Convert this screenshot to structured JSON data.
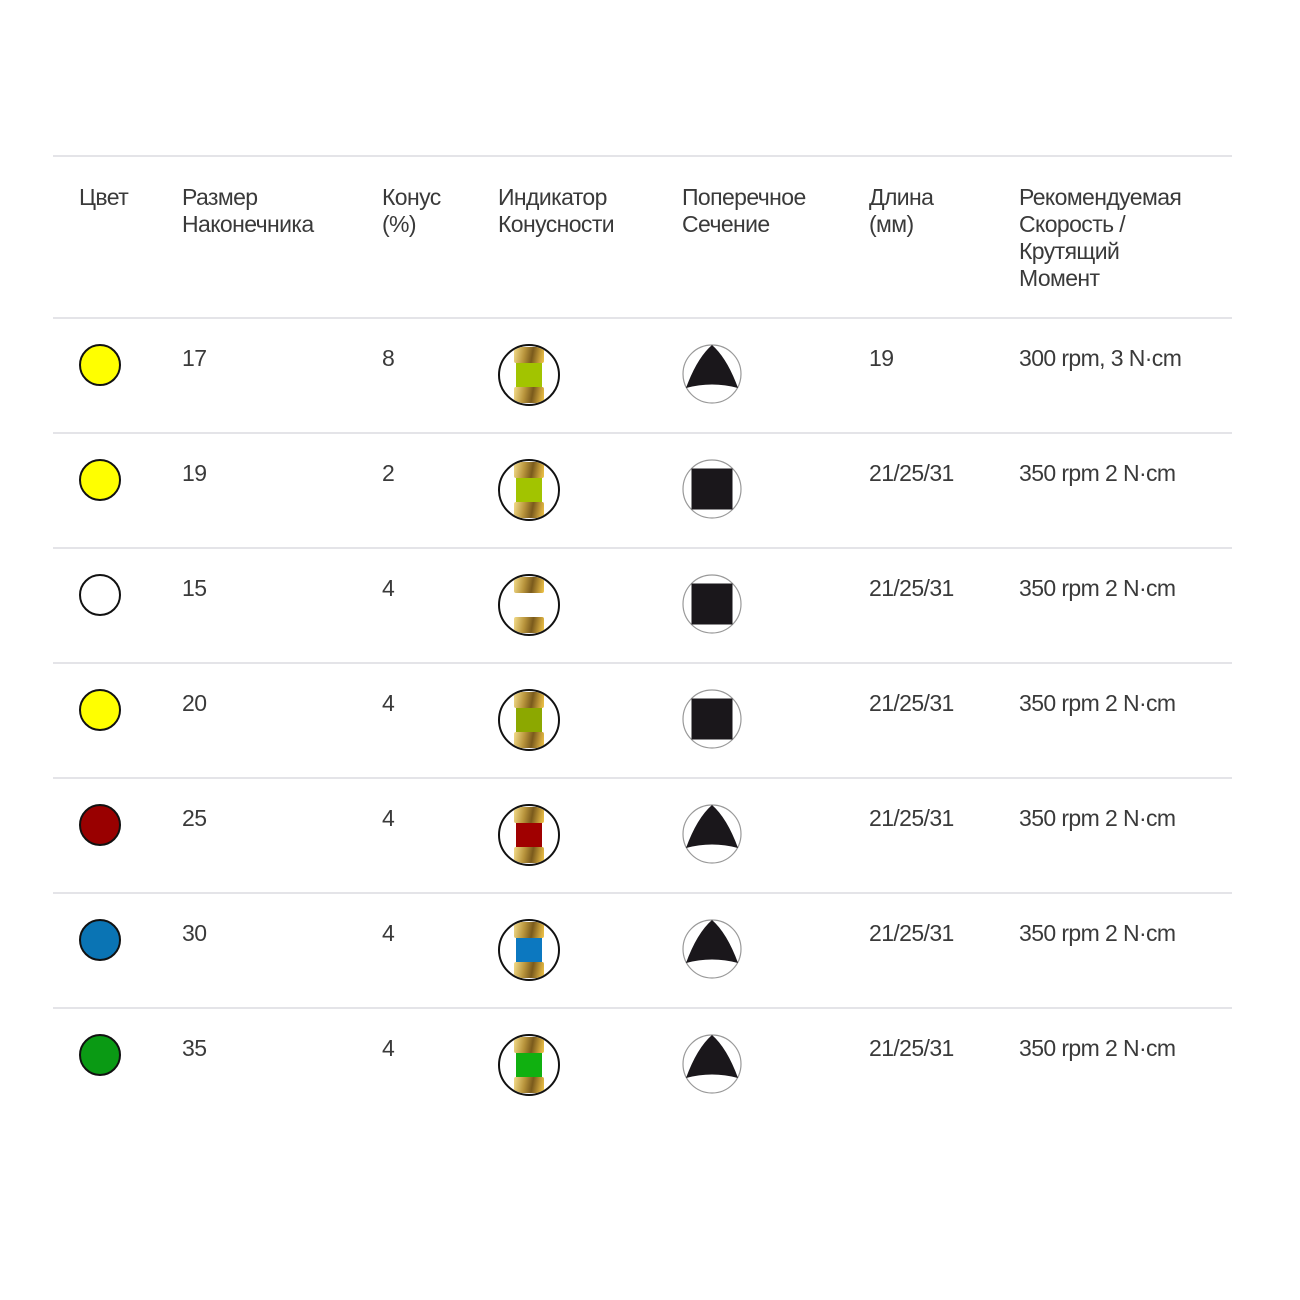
{
  "header": {
    "columns": [
      [
        "Цвет"
      ],
      [
        "Размер",
        "Наконечника"
      ],
      [
        "Конус",
        "(%)"
      ],
      [
        "Индикатор",
        "Конусности"
      ],
      [
        "Поперечное",
        "Сечение"
      ],
      [
        "Длина",
        "(мм)"
      ],
      [
        "Рекомендуемая",
        "Скорость /",
        "Крутящий",
        "Момент"
      ]
    ]
  },
  "rows": [
    {
      "color": "#ffff00",
      "indicator_color": "#a2c400",
      "tip_size": "17",
      "taper": "8",
      "cross_section": "triangle",
      "length": "19",
      "speed_torque": "300 rpm, 3 N·cm"
    },
    {
      "color": "#ffff00",
      "indicator_color": "#a2c400",
      "tip_size": "19",
      "taper": "2",
      "cross_section": "square",
      "length": "21/25/31",
      "speed_torque": "350 rpm 2 N·cm"
    },
    {
      "color": "#ffffff",
      "indicator_color": "#ffffff",
      "tip_size": "15",
      "taper": "4",
      "cross_section": "square",
      "length": "21/25/31",
      "speed_torque": "350 rpm 2 N·cm"
    },
    {
      "color": "#ffff00",
      "indicator_color": "#8ca800",
      "tip_size": "20",
      "taper": "4",
      "cross_section": "square",
      "length": "21/25/31",
      "speed_torque": "350 rpm 2 N·cm"
    },
    {
      "color": "#990000",
      "indicator_color": "#a00000",
      "tip_size": "25",
      "taper": "4",
      "cross_section": "triangle",
      "length": "21/25/31",
      "speed_torque": "350 rpm 2 N·cm"
    },
    {
      "color": "#0a74b4",
      "indicator_color": "#0c78c0",
      "tip_size": "30",
      "taper": "4",
      "cross_section": "triangle",
      "length": "21/25/31",
      "speed_torque": "350 rpm 2 N·cm"
    },
    {
      "color": "#0a9a14",
      "indicator_color": "#10b010",
      "tip_size": "35",
      "taper": "4",
      "cross_section": "triangle",
      "length": "21/25/31",
      "speed_torque": "350 rpm 2 N·cm"
    }
  ]
}
